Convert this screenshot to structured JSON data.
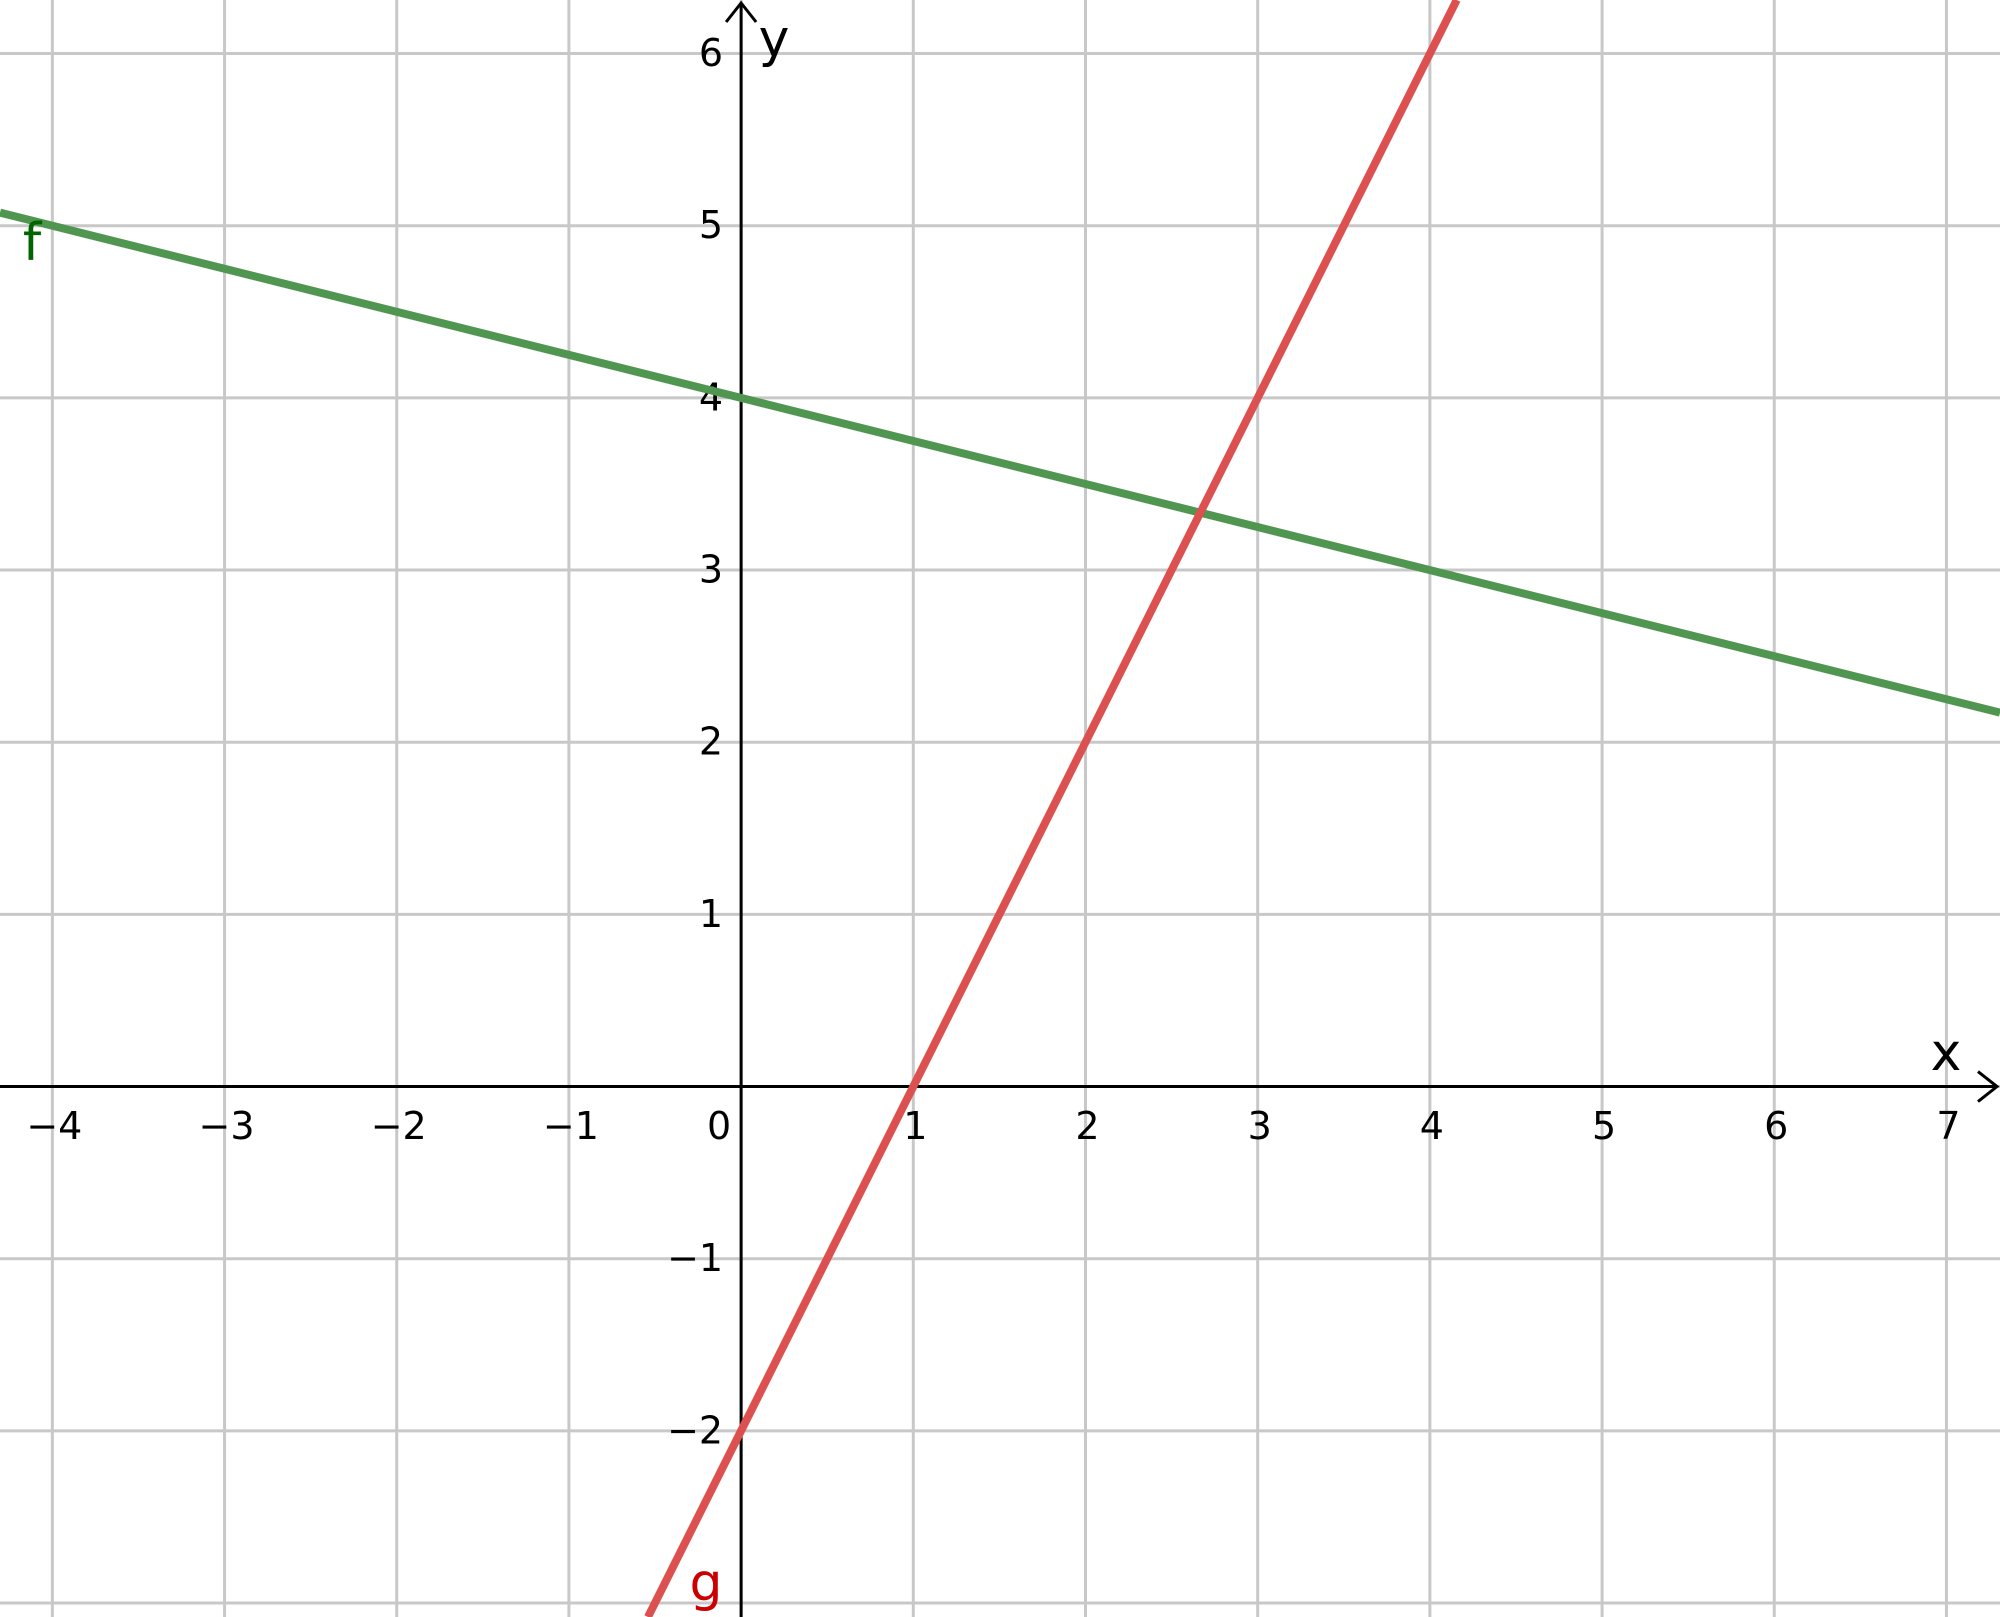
{
  "chart_data": {
    "type": "line",
    "xlim": [
      -4.304,
      7.311
    ],
    "ylim": [
      -3.081,
      6.311
    ],
    "xticks": [
      {
        "value": -4,
        "label": "−4"
      },
      {
        "value": -3,
        "label": "−3"
      },
      {
        "value": -2,
        "label": "−2"
      },
      {
        "value": -1,
        "label": "−1"
      },
      0,
      1,
      2,
      3,
      4,
      5,
      6,
      7
    ],
    "yticks": [
      {
        "value": -2,
        "label": "−2"
      },
      {
        "value": -1,
        "label": "−1"
      },
      1,
      2,
      3,
      4,
      5,
      6
    ],
    "ygrid": [
      -3,
      -2,
      -1,
      0,
      1,
      2,
      3,
      4,
      5,
      6
    ],
    "grid": true,
    "xlabel": "x",
    "ylabel": "y",
    "series": [
      {
        "name": "f",
        "color": "#509650",
        "label_color": "#006400",
        "x": [
          -4.304,
          7.311
        ],
        "values": [
          5.076,
          2.172
        ]
      },
      {
        "name": "g",
        "color": "#dc5050",
        "label_color": "#cc0000",
        "x": [
          -0.541,
          4.156
        ],
        "values": [
          -3.081,
          6.311
        ]
      }
    ]
  }
}
